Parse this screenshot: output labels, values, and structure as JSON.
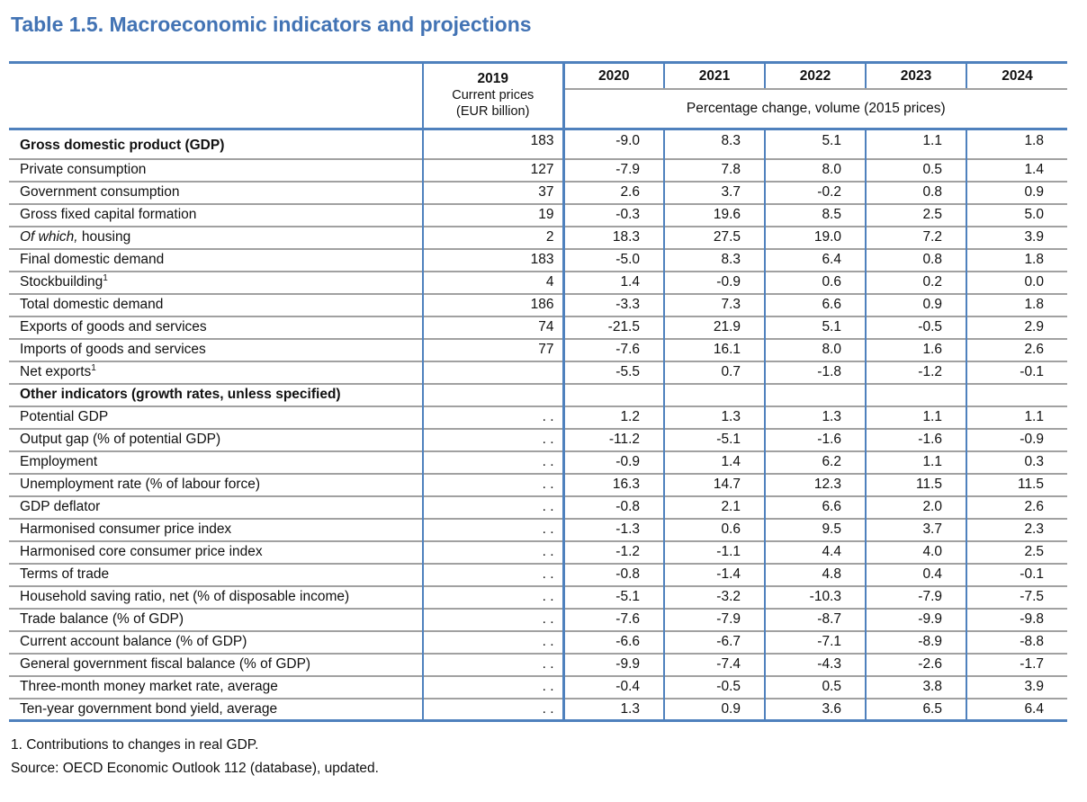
{
  "title": "Table 1.5. Macroeconomic indicators and projections",
  "colors": {
    "accent_blue": "#4f81bd",
    "grid_gray": "#a1a1a1",
    "title_blue": "#4273b4"
  },
  "table": {
    "col2019": {
      "year": "2019",
      "sub1": "Current prices",
      "sub2": "(EUR billion)"
    },
    "years": [
      "2020",
      "2021",
      "2022",
      "2023",
      "2024"
    ],
    "span_header": "Percentage change, volume (2015 prices)",
    "rows": [
      {
        "label": "Gross domestic product (GDP)",
        "bold": true,
        "tall": true,
        "v2019": "183",
        "values": [
          "-9.0",
          "8.3",
          "5.1",
          "1.1",
          "1.8"
        ]
      },
      {
        "label": "Private consumption",
        "v2019": "127",
        "values": [
          "-7.9",
          "7.8",
          "8.0",
          "0.5",
          "1.4"
        ]
      },
      {
        "label": "Government consumption",
        "v2019": "37",
        "values": [
          "2.6",
          "3.7",
          "-0.2",
          "0.8",
          "0.9"
        ]
      },
      {
        "label": "Gross fixed capital formation",
        "v2019": "19",
        "values": [
          "-0.3",
          "19.6",
          "8.5",
          "2.5",
          "5.0"
        ]
      },
      {
        "label": " housing",
        "italic_prefix": "Of which,",
        "v2019": "2",
        "values": [
          "18.3",
          "27.5",
          "19.0",
          "7.2",
          "3.9"
        ]
      },
      {
        "label": "Final domestic demand",
        "v2019": "183",
        "values": [
          "-5.0",
          "8.3",
          "6.4",
          "0.8",
          "1.8"
        ]
      },
      {
        "label": "Stockbuilding",
        "sup": "1",
        "v2019": "4",
        "values": [
          "1.4",
          "-0.9",
          "0.6",
          "0.2",
          "0.0"
        ]
      },
      {
        "label": "Total domestic demand",
        "v2019": "186",
        "values": [
          "-3.3",
          "7.3",
          "6.6",
          "0.9",
          "1.8"
        ]
      },
      {
        "label": "Exports of goods and services",
        "v2019": "74",
        "values": [
          "-21.5",
          "21.9",
          "5.1",
          "-0.5",
          "2.9"
        ]
      },
      {
        "label": "Imports of goods and services",
        "v2019": "77",
        "values": [
          "-7.6",
          "16.1",
          "8.0",
          "1.6",
          "2.6"
        ]
      },
      {
        "label": "Net exports",
        "sup": "1",
        "v2019": "",
        "values": [
          "-5.5",
          "0.7",
          "-1.8",
          "-1.2",
          "-0.1"
        ]
      },
      {
        "label": "Other indicators (growth rates, unless specified)",
        "bold": true,
        "v2019": "",
        "values": [
          "",
          "",
          "",
          "",
          ""
        ]
      },
      {
        "label": "Potential GDP",
        "v2019": ". .",
        "values": [
          "1.2",
          "1.3",
          "1.3",
          "1.1",
          "1.1"
        ]
      },
      {
        "label": "Output gap (% of potential GDP)",
        "v2019": ". .",
        "values": [
          "-11.2",
          "-5.1",
          "-1.6",
          "-1.6",
          "-0.9"
        ]
      },
      {
        "label": "Employment",
        "v2019": ". .",
        "values": [
          "-0.9",
          "1.4",
          "6.2",
          "1.1",
          "0.3"
        ]
      },
      {
        "label": "Unemployment rate (% of labour force)",
        "v2019": ". .",
        "values": [
          "16.3",
          "14.7",
          "12.3",
          "11.5",
          "11.5"
        ]
      },
      {
        "label": "GDP deflator",
        "v2019": ". .",
        "values": [
          "-0.8",
          "2.1",
          "6.6",
          "2.0",
          "2.6"
        ]
      },
      {
        "label": "Harmonised consumer price index",
        "v2019": ". .",
        "values": [
          "-1.3",
          "0.6",
          "9.5",
          "3.7",
          "2.3"
        ]
      },
      {
        "label": "Harmonised core consumer price index",
        "v2019": ". .",
        "values": [
          "-1.2",
          "-1.1",
          "4.4",
          "4.0",
          "2.5"
        ]
      },
      {
        "label": "Terms of trade",
        "v2019": ". .",
        "values": [
          "-0.8",
          "-1.4",
          "4.8",
          "0.4",
          "-0.1"
        ]
      },
      {
        "label": "Household saving ratio, net (% of disposable income)",
        "v2019": ". .",
        "values": [
          "-5.1",
          "-3.2",
          "-10.3",
          "-7.9",
          "-7.5"
        ]
      },
      {
        "label": "Trade balance (% of GDP)",
        "v2019": ". .",
        "values": [
          "-7.6",
          "-7.9",
          "-8.7",
          "-9.9",
          "-9.8"
        ]
      },
      {
        "label": "Current account balance (% of GDP)",
        "v2019": ". .",
        "values": [
          "-6.6",
          "-6.7",
          "-7.1",
          "-8.9",
          "-8.8"
        ]
      },
      {
        "label": "General government fiscal balance (% of GDP)",
        "v2019": ". .",
        "values": [
          "-9.9",
          "-7.4",
          "-4.3",
          "-2.6",
          "-1.7"
        ]
      },
      {
        "label": "Three-month money market rate, average",
        "v2019": ". .",
        "values": [
          "-0.4",
          "-0.5",
          "0.5",
          "3.8",
          "3.9"
        ]
      },
      {
        "label": "Ten-year government bond yield, average",
        "v2019": ". .",
        "values": [
          "1.3",
          "0.9",
          "3.6",
          "6.5",
          "6.4"
        ]
      }
    ]
  },
  "footnotes": [
    "1. Contributions to changes in real GDP.",
    "Source: OECD Economic Outlook 112 (database), updated."
  ]
}
